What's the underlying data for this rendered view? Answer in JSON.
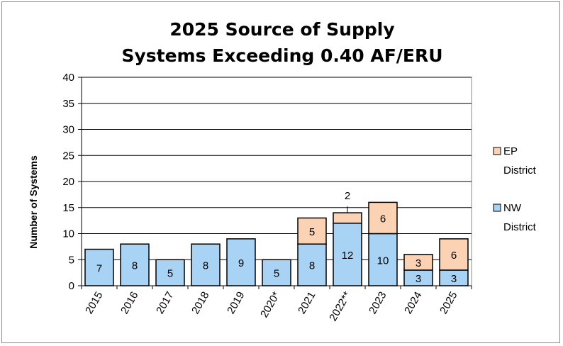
{
  "chart_data": {
    "type": "bar",
    "stacked": true,
    "title": [
      "2025 Source of Supply",
      "Systems Exceeding 0.40 AF/ERU"
    ],
    "xlabel": "",
    "ylabel": "Number of Systems",
    "ylim": [
      0,
      40
    ],
    "yticks": [
      0,
      5,
      10,
      15,
      20,
      25,
      30,
      35,
      40
    ],
    "grid": true,
    "legend_position": "right",
    "categories": [
      "2015",
      "2016",
      "2017",
      "2018",
      "2019",
      "2020*",
      "2021",
      "2022**",
      "2023",
      "2024",
      "2025"
    ],
    "series": [
      {
        "name": "NW District",
        "legend_lines": [
          "NW",
          "District"
        ],
        "color": "#a9d3f5",
        "values": [
          7,
          8,
          5,
          8,
          9,
          5,
          8,
          12,
          10,
          3,
          3
        ]
      },
      {
        "name": "EP District",
        "legend_lines": [
          "EP",
          "District"
        ],
        "color": "#fbd2b4",
        "values": [
          0,
          0,
          0,
          0,
          0,
          0,
          5,
          2,
          6,
          3,
          6
        ]
      }
    ]
  }
}
